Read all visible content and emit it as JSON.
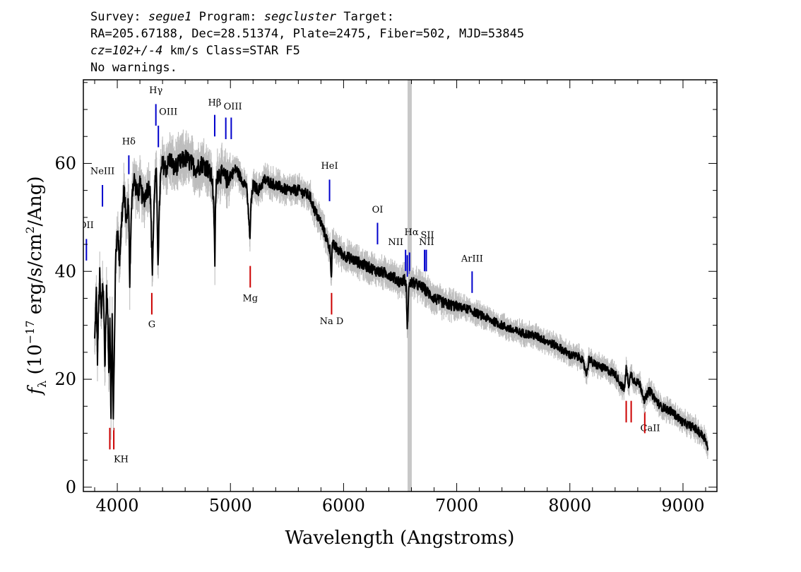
{
  "header": {
    "line1": {
      "survey_label": "Survey:",
      "survey": "segue1",
      "program_label": "Program:",
      "program": "segcluster",
      "target_label": "Target:"
    },
    "line2": "RA=205.67188, Dec=28.51374, Plate=2475, Fiber=502, MJD=53845",
    "line3": {
      "cz": "cz=102+/-4",
      "rest": " km/s Class=STAR F5"
    },
    "line4": "No warnings."
  },
  "chart_data": {
    "type": "line",
    "xlabel": "Wavelength (Angstroms)",
    "ylabel": "f_λ (10^-17 erg/s/cm^2/Ang)",
    "ylabel_parts": {
      "f": "f",
      "sub": "λ",
      "a": " (10",
      "sup1": "−17",
      "b": " erg/s/cm",
      "sup2": "2",
      "c": "/Ang)"
    },
    "xlim": [
      3700,
      9300
    ],
    "ylim": [
      -0.8,
      75.5
    ],
    "x_ticks": [
      4000,
      5000,
      6000,
      7000,
      8000,
      9000
    ],
    "y_ticks": [
      0,
      20,
      40,
      60
    ],
    "grid": false,
    "masked_wavelength": 6577,
    "colors": {
      "flux": "#000000",
      "error": "#bdbdbd",
      "emission_line": "#0000cc",
      "absorption_line": "#cc0000",
      "masked_band": "#c8c8c8"
    },
    "spectrum": {
      "x": [
        3800,
        3815,
        3825,
        3835,
        3845,
        3860,
        3870,
        3880,
        3890,
        3905,
        3915,
        3925,
        3935,
        3945,
        3955,
        3965,
        3975,
        3985,
        4000,
        4020,
        4040,
        4060,
        4080,
        4100,
        4110,
        4130,
        4150,
        4180,
        4200,
        4230,
        4260,
        4290,
        4310,
        4330,
        4345,
        4360,
        4380,
        4400,
        4430,
        4470,
        4500,
        4550,
        4600,
        4650,
        4700,
        4750,
        4800,
        4840,
        4855,
        4862,
        4868,
        4880,
        4920,
        4970,
        5050,
        5100,
        5140,
        5165,
        5172,
        5180,
        5200,
        5250,
        5300,
        5400,
        5500,
        5600,
        5700,
        5750,
        5800,
        5850,
        5880,
        5893,
        5900,
        5950,
        6000,
        6100,
        6200,
        6300,
        6400,
        6500,
        6540,
        6555,
        6563,
        6575,
        6600,
        6650,
        6700,
        6800,
        6900,
        7000,
        7100,
        7200,
        7300,
        7400,
        7500,
        7600,
        7700,
        7800,
        7900,
        8000,
        8100,
        8150,
        8170,
        8200,
        8300,
        8400,
        8480,
        8498,
        8520,
        8542,
        8560,
        8620,
        8662,
        8700,
        8800,
        8900,
        9000,
        9100,
        9150,
        9200,
        9220
      ],
      "flux": [
        27,
        36,
        24,
        33,
        39,
        31,
        38,
        35,
        22,
        36,
        33,
        21,
        32,
        12,
        33,
        12,
        27,
        42,
        48,
        42,
        50,
        55,
        49,
        53,
        38,
        55,
        57,
        54,
        56,
        53,
        55,
        56,
        40,
        56,
        58,
        42,
        57,
        60,
        59,
        61,
        59,
        60,
        61,
        60,
        59,
        60,
        59,
        57,
        50,
        41,
        52,
        58,
        58,
        57,
        59,
        57,
        56,
        49,
        45,
        52,
        56,
        55,
        57,
        56,
        55,
        55,
        54,
        51,
        49,
        46,
        44,
        39,
        45,
        44,
        43,
        42,
        41,
        40,
        39.5,
        38,
        38.5,
        37,
        28,
        37,
        38,
        37.5,
        37,
        35,
        34,
        33.5,
        33,
        32,
        31,
        30,
        29,
        28.5,
        28,
        27,
        26,
        24.5,
        24,
        21,
        24,
        23,
        22,
        21,
        18,
        22,
        19,
        21,
        20,
        19,
        16,
        18,
        15,
        14,
        12,
        11,
        10,
        9,
        7
      ]
    },
    "emission_lines": [
      {
        "label": "OII",
        "x": 3727,
        "y_top": 42,
        "y_bottom": 46,
        "label_y": 48
      },
      {
        "label": "NeIII",
        "x": 3869,
        "y_top": 52,
        "y_bottom": 56,
        "label_y": 58
      },
      {
        "label": "Hδ",
        "x": 4102,
        "y_top": 58,
        "y_bottom": 61.5,
        "label_y": 63.5
      },
      {
        "label": "Hγ",
        "x": 4341,
        "y_top": 67,
        "y_bottom": 71,
        "label_y": 73
      },
      {
        "label": "OIII",
        "x": 4363,
        "y_top": 63,
        "y_bottom": 67,
        "label_y": 69,
        "label_dx": 14
      },
      {
        "label": "Hβ",
        "x": 4861,
        "y_top": 65,
        "y_bottom": 69,
        "label_y": 70.7
      },
      {
        "label": "OIII",
        "x": 4959,
        "y_top": 64.5,
        "y_bottom": 68.5,
        "label_y": 70,
        "label_dx": 10
      },
      {
        "label": "",
        "x": 5007,
        "y_top": 64.5,
        "y_bottom": 68.5
      },
      {
        "label": "HeI",
        "x": 5876,
        "y_top": 53,
        "y_bottom": 57,
        "label_y": 59
      },
      {
        "label": "OI",
        "x": 6300,
        "y_top": 45,
        "y_bottom": 49,
        "label_y": 50.9
      },
      {
        "label": "NII",
        "x": 6548,
        "y_top": 40,
        "y_bottom": 44,
        "label_y": 44.9,
        "label_dx": -14
      },
      {
        "label": "Hα",
        "x": 6563,
        "y_top": 39,
        "y_bottom": 43,
        "label_y": 46.7,
        "label_dx": 6
      },
      {
        "label": "NII",
        "x": 6583,
        "y_top": 39.5,
        "y_bottom": 43.5,
        "label_y": 44.9,
        "label_dx": 24
      },
      {
        "label": "SII",
        "x": 6716,
        "y_top": 40,
        "y_bottom": 44,
        "label_y": 46.2,
        "label_dx": 4
      },
      {
        "label": "",
        "x": 6731,
        "y_top": 40,
        "y_bottom": 44
      },
      {
        "label": "ArIII",
        "x": 7136,
        "y_top": 36,
        "y_bottom": 40,
        "label_y": 41.8
      }
    ],
    "absorption_lines": [
      {
        "label": "KH",
        "x": 3934,
        "y_top": 7,
        "y_bottom": 11,
        "label_y": 4.6,
        "label_dx": 16
      },
      {
        "label": "",
        "x": 3969,
        "y_top": 7,
        "y_bottom": 11
      },
      {
        "label": "G",
        "x": 4305,
        "y_top": 32,
        "y_bottom": 36,
        "label_y": 29.6
      },
      {
        "label": "Mg",
        "x": 5175,
        "y_top": 37,
        "y_bottom": 41,
        "label_y": 34.5
      },
      {
        "label": "Na D",
        "x": 5894,
        "y_top": 32,
        "y_bottom": 36,
        "label_y": 30.2
      },
      {
        "label": "CaII",
        "x": 8498,
        "y_top": 12,
        "y_bottom": 16,
        "label_y": 10.4,
        "label_dx": 34
      },
      {
        "label": "",
        "x": 8542,
        "y_top": 12,
        "y_bottom": 16
      },
      {
        "label": "",
        "x": 8662,
        "y_top": 10,
        "y_bottom": 14
      }
    ]
  }
}
